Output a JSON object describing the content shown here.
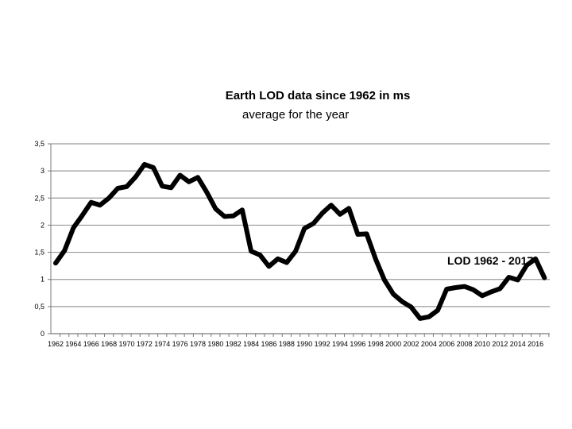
{
  "chart_data": {
    "type": "line",
    "title": "Earth LOD data since 1962 in ms",
    "subtitle": "average for the year",
    "xlabel": "",
    "ylabel": "",
    "ylim": [
      0,
      3.5
    ],
    "y_ticks": [
      "0",
      "0,5",
      "1",
      "1,5",
      "2",
      "2,5",
      "3",
      "3,5"
    ],
    "x_ticks": [
      "1962",
      "1964",
      "1966",
      "1968",
      "1970",
      "1972",
      "1974",
      "1976",
      "1978",
      "1980",
      "1982",
      "1984",
      "1986",
      "1988",
      "1990",
      "1992",
      "1994",
      "1996",
      "1998",
      "2000",
      "2002",
      "2004",
      "2006",
      "2008",
      "2010",
      "2012",
      "2014",
      "2016"
    ],
    "grid": true,
    "annotation": "LOD 1962 - 2017",
    "series": [
      {
        "color": "#000000",
        "x": [
          1962,
          1963,
          1964,
          1965,
          1966,
          1967,
          1968,
          1969,
          1970,
          1971,
          1972,
          1973,
          1974,
          1975,
          1976,
          1977,
          1978,
          1979,
          1980,
          1981,
          1982,
          1983,
          1984,
          1985,
          1986,
          1987,
          1988,
          1989,
          1990,
          1991,
          1992,
          1993,
          1994,
          1995,
          1996,
          1997,
          1998,
          1999,
          2000,
          2001,
          2002,
          2003,
          2004,
          2005,
          2006,
          2007,
          2008,
          2009,
          2010,
          2011,
          2012,
          2013,
          2014,
          2015,
          2016,
          2017
        ],
        "values": [
          1.3,
          1.53,
          1.95,
          2.18,
          2.42,
          2.37,
          2.5,
          2.68,
          2.71,
          2.89,
          3.12,
          3.06,
          2.72,
          2.69,
          2.92,
          2.8,
          2.88,
          2.61,
          2.3,
          2.16,
          2.17,
          2.28,
          1.52,
          1.45,
          1.24,
          1.38,
          1.31,
          1.52,
          1.94,
          2.03,
          2.22,
          2.37,
          2.2,
          2.31,
          1.83,
          1.84,
          1.38,
          0.99,
          0.73,
          0.59,
          0.49,
          0.28,
          0.31,
          0.43,
          0.82,
          0.85,
          0.87,
          0.81,
          0.7,
          0.77,
          0.83,
          1.04,
          0.99,
          1.26,
          1.38,
          1.03
        ]
      }
    ]
  }
}
